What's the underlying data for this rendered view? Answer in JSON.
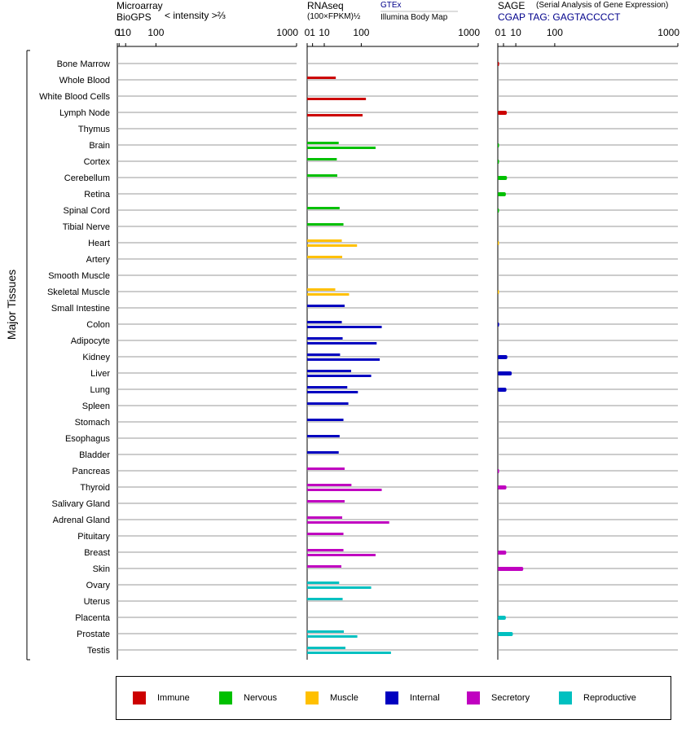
{
  "headers": {
    "microarray": {
      "title": "Microarray",
      "subtitle": "BioGPS",
      "scale": "< intensity >⅔"
    },
    "rnaseq": {
      "title": "RNAseq",
      "scale": "(100×FPKM)½",
      "gtex": "GTEx",
      "illumina": "Illumina Body Map"
    },
    "sage": {
      "title": "SAGE",
      "note": "(Serial Analysis of Gene Expression)",
      "tag": "CGAP TAG: GAGTACCCCT"
    }
  },
  "ylabel": "Major Tissues",
  "colors": {
    "Immune": "#cc0000",
    "Nervous": "#00c000",
    "Muscle": "#ffc000",
    "Internal": "#0000c0",
    "Secretory": "#c000c0",
    "Reproductive": "#00c0c0",
    "sage_tag": "#00008b",
    "gtex": "#00008b"
  },
  "legend": [
    {
      "group": "Immune",
      "label": "Immune"
    },
    {
      "group": "Nervous",
      "label": "Nervous"
    },
    {
      "group": "Muscle",
      "label": "Muscle"
    },
    {
      "group": "Internal",
      "label": "Internal"
    },
    {
      "group": "Secretory",
      "label": "Secretory"
    },
    {
      "group": "Reproductive",
      "label": "Reproductive"
    }
  ],
  "chart_data": {
    "type": "bar",
    "orientation": "horizontal",
    "ticks": [
      "0",
      "1",
      "10",
      "100",
      "1000"
    ],
    "tick_values": [
      0,
      1,
      10,
      100,
      1000
    ],
    "xlim": [
      0,
      1000
    ],
    "series": [
      {
        "key": "microarray",
        "label": "Microarray"
      },
      {
        "key": "gtex",
        "label": "GTEx"
      },
      {
        "key": "illumina",
        "label": "Illumina Body Map"
      },
      {
        "key": "sage",
        "label": "SAGE"
      }
    ],
    "tissues": [
      {
        "name": "Bone Marrow",
        "group": "Immune",
        "microarray": null,
        "gtex": null,
        "illumina": null,
        "sage": 0.05
      },
      {
        "name": "Whole Blood",
        "group": "Immune",
        "microarray": null,
        "gtex": 28,
        "illumina": null,
        "sage": null
      },
      {
        "name": "White Blood Cells",
        "group": "Immune",
        "microarray": null,
        "gtex": null,
        "illumina": 118,
        "sage": null
      },
      {
        "name": "Lymph Node",
        "group": "Immune",
        "microarray": null,
        "gtex": null,
        "illumina": 105,
        "sage": 2.5
      },
      {
        "name": "Thymus",
        "group": "Immune",
        "microarray": null,
        "gtex": null,
        "illumina": null,
        "sage": null
      },
      {
        "name": "Brain",
        "group": "Nervous",
        "microarray": null,
        "gtex": 34,
        "illumina": 160,
        "sage": 0.03
      },
      {
        "name": "Cortex",
        "group": "Nervous",
        "microarray": null,
        "gtex": 30,
        "illumina": null,
        "sage": 0.03
      },
      {
        "name": "Cerebellum",
        "group": "Nervous",
        "microarray": null,
        "gtex": 31,
        "illumina": null,
        "sage": 2.6
      },
      {
        "name": "Retina",
        "group": "Nervous",
        "microarray": null,
        "gtex": null,
        "illumina": null,
        "sage": 2.0
      },
      {
        "name": "Spinal Cord",
        "group": "Nervous",
        "microarray": null,
        "gtex": 36,
        "illumina": null,
        "sage": 0.03
      },
      {
        "name": "Tibial Nerve",
        "group": "Nervous",
        "microarray": null,
        "gtex": 45,
        "illumina": null,
        "sage": null
      },
      {
        "name": "Heart",
        "group": "Muscle",
        "microarray": null,
        "gtex": 41,
        "illumina": 85,
        "sage": 0.02
      },
      {
        "name": "Artery",
        "group": "Muscle",
        "microarray": null,
        "gtex": 42,
        "illumina": null,
        "sage": null
      },
      {
        "name": "Smooth Muscle",
        "group": "Muscle",
        "microarray": null,
        "gtex": null,
        "illumina": null,
        "sage": null
      },
      {
        "name": "Skeletal Muscle",
        "group": "Muscle",
        "microarray": null,
        "gtex": 27,
        "illumina": 60,
        "sage": 0.02
      },
      {
        "name": "Small Intestine",
        "group": "Internal",
        "microarray": null,
        "gtex": 48,
        "illumina": null,
        "sage": null
      },
      {
        "name": "Colon",
        "group": "Internal",
        "microarray": null,
        "gtex": 41,
        "illumina": 190,
        "sage": 0.05
      },
      {
        "name": "Adipocyte",
        "group": "Internal",
        "microarray": null,
        "gtex": 43,
        "illumina": 165,
        "sage": null
      },
      {
        "name": "Kidney",
        "group": "Internal",
        "microarray": null,
        "gtex": 37,
        "illumina": 180,
        "sage": 2.8
      },
      {
        "name": "Liver",
        "group": "Internal",
        "microarray": null,
        "gtex": 66,
        "illumina": 140,
        "sage": 6.0
      },
      {
        "name": "Lung",
        "group": "Internal",
        "microarray": null,
        "gtex": 55,
        "illumina": 88,
        "sage": 2.3
      },
      {
        "name": "Spleen",
        "group": "Internal",
        "microarray": null,
        "gtex": 58,
        "illumina": null,
        "sage": null
      },
      {
        "name": "Stomach",
        "group": "Internal",
        "microarray": null,
        "gtex": 45,
        "illumina": null,
        "sage": null
      },
      {
        "name": "Esophagus",
        "group": "Internal",
        "microarray": null,
        "gtex": 36,
        "illumina": null,
        "sage": null
      },
      {
        "name": "Bladder",
        "group": "Internal",
        "microarray": null,
        "gtex": 34,
        "illumina": null,
        "sage": null
      },
      {
        "name": "Pancreas",
        "group": "Secretory",
        "microarray": null,
        "gtex": 48,
        "illumina": null,
        "sage": 0.05
      },
      {
        "name": "Thyroid",
        "group": "Secretory",
        "microarray": null,
        "gtex": 67,
        "illumina": 190,
        "sage": 2.3
      },
      {
        "name": "Salivary Gland",
        "group": "Secretory",
        "microarray": null,
        "gtex": 48,
        "illumina": null,
        "sage": null
      },
      {
        "name": "Adrenal Gland",
        "group": "Secretory",
        "microarray": null,
        "gtex": 42,
        "illumina": 230,
        "sage": null
      },
      {
        "name": "Pituitary",
        "group": "Secretory",
        "microarray": null,
        "gtex": 45,
        "illumina": null,
        "sage": null
      },
      {
        "name": "Breast",
        "group": "Secretory",
        "microarray": null,
        "gtex": 45,
        "illumina": 160,
        "sage": 2.2
      },
      {
        "name": "Skin",
        "group": "Secretory",
        "microarray": null,
        "gtex": 40,
        "illumina": null,
        "sage": 20
      },
      {
        "name": "Ovary",
        "group": "Reproductive",
        "microarray": null,
        "gtex": 35,
        "illumina": 140,
        "sage": null
      },
      {
        "name": "Uterus",
        "group": "Reproductive",
        "microarray": null,
        "gtex": 43,
        "illumina": null,
        "sage": null
      },
      {
        "name": "Placenta",
        "group": "Reproductive",
        "microarray": null,
        "gtex": null,
        "illumina": null,
        "sage": 2.0
      },
      {
        "name": "Prostate",
        "group": "Reproductive",
        "microarray": null,
        "gtex": 46,
        "illumina": 86,
        "sage": 7.0
      },
      {
        "name": "Testis",
        "group": "Reproductive",
        "microarray": null,
        "gtex": 50,
        "illumina": 240,
        "sage": null
      }
    ]
  }
}
